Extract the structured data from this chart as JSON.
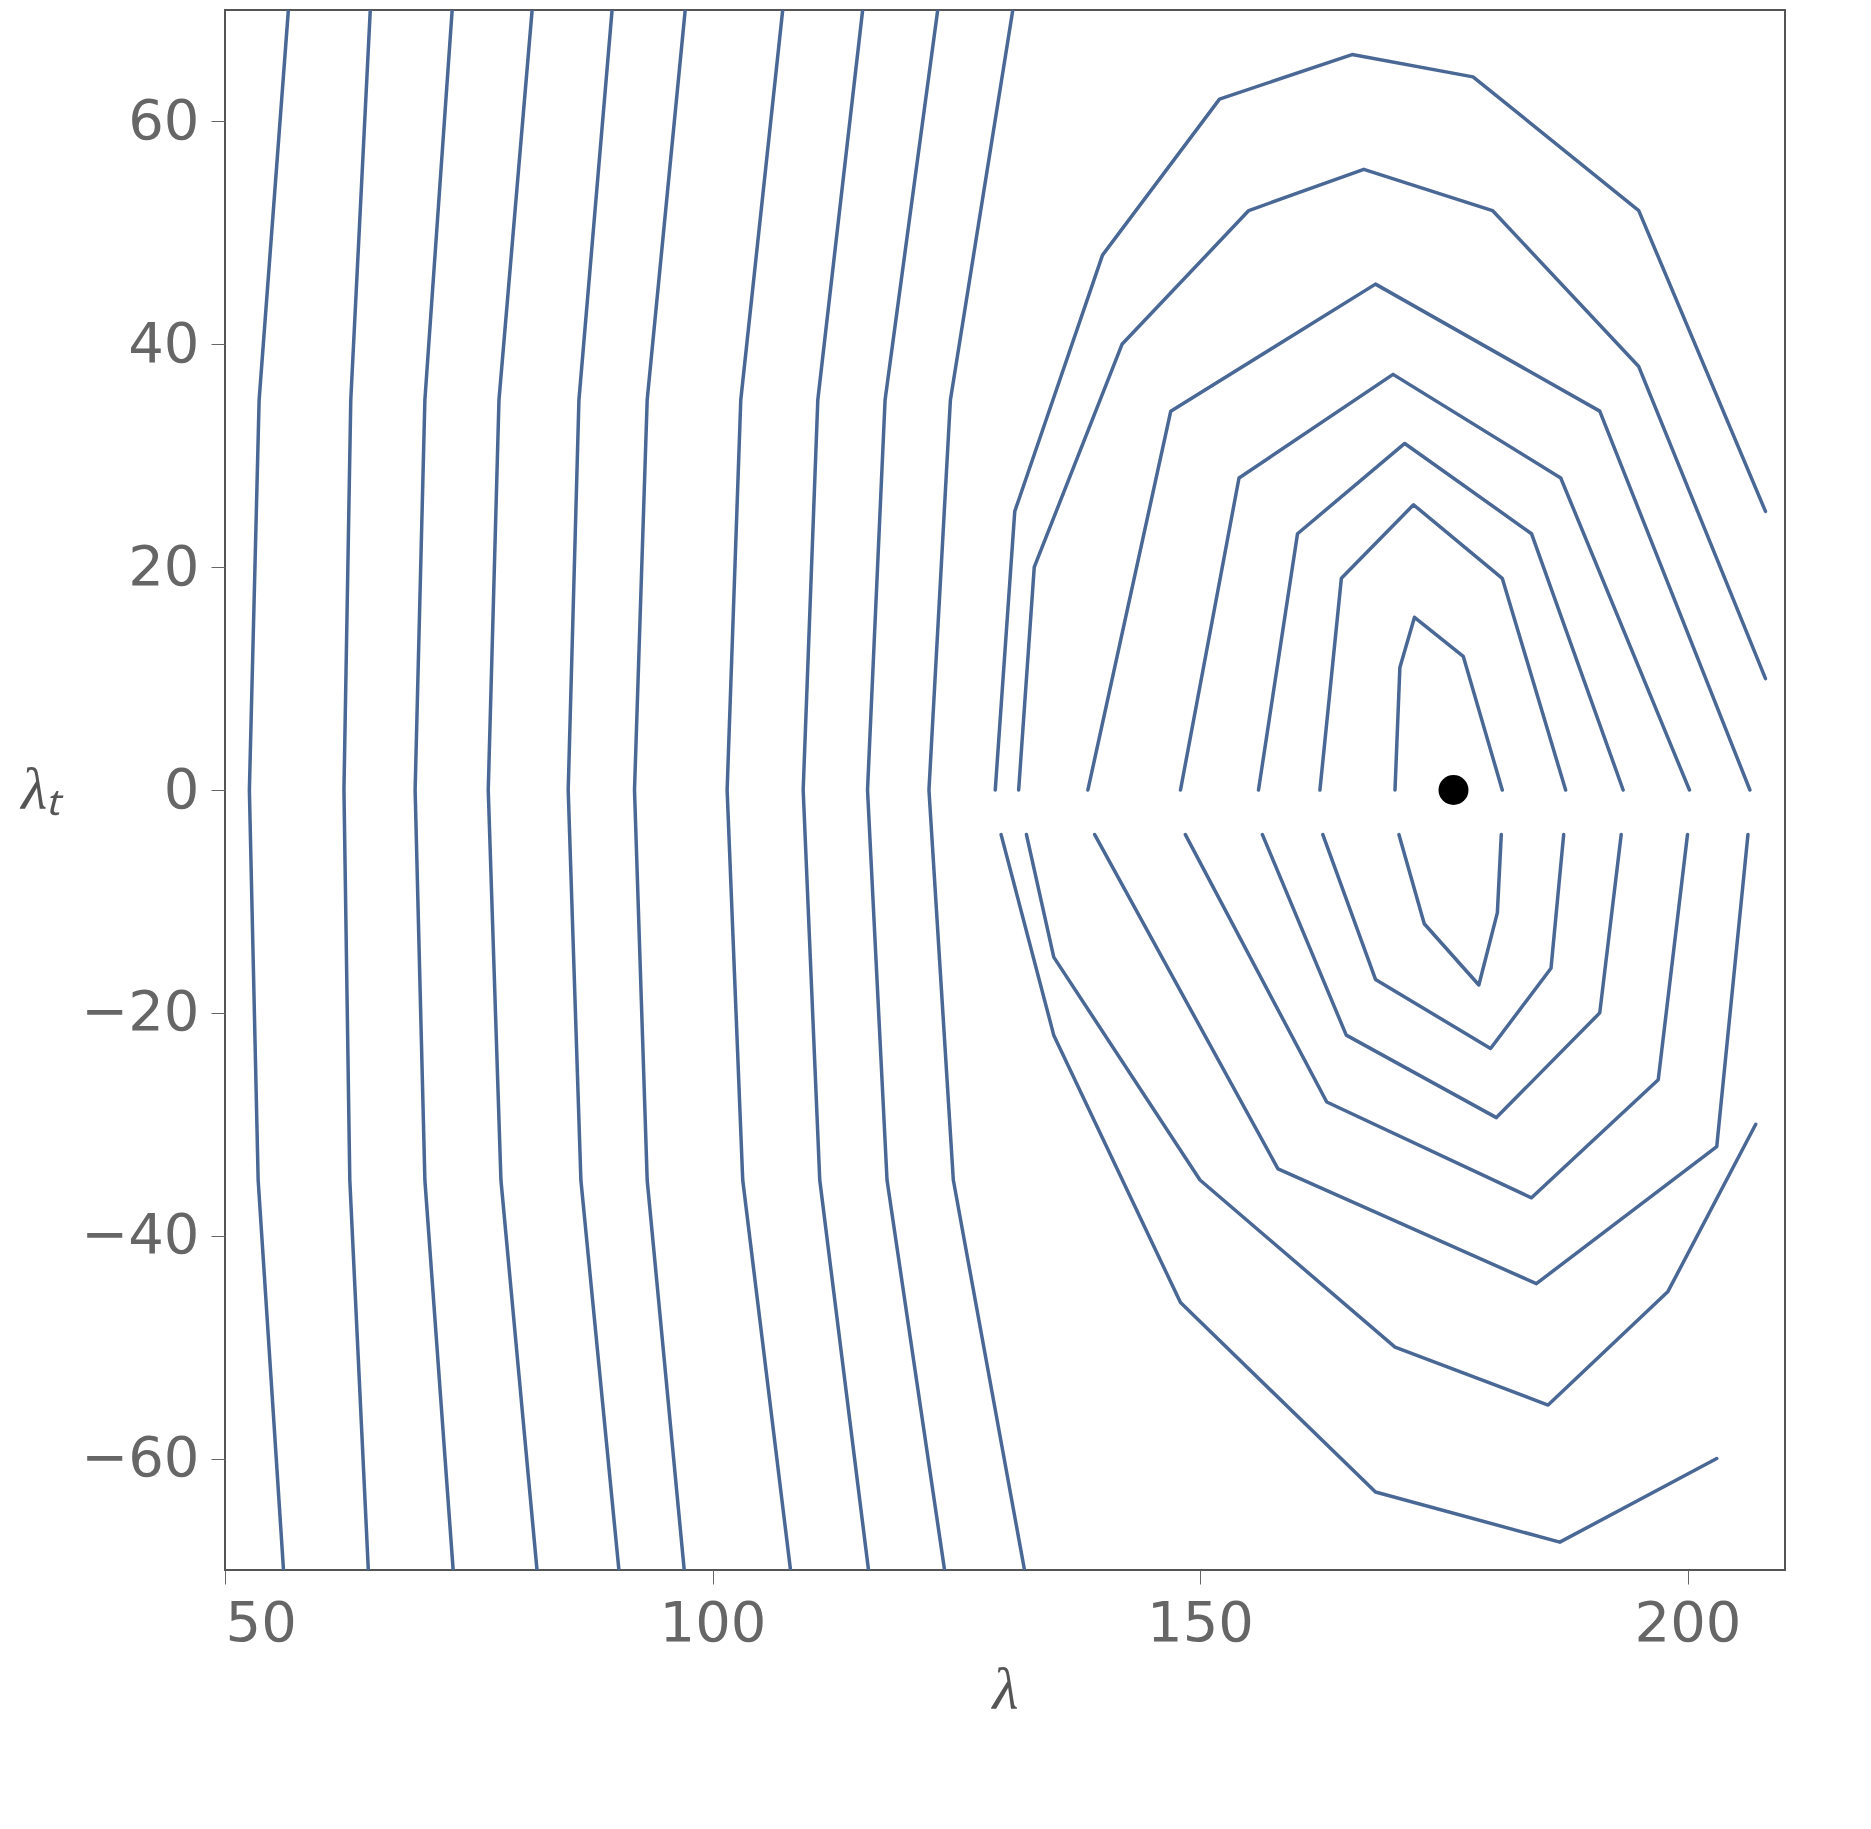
{
  "chart_data": {
    "type": "line",
    "xlabel": "λ",
    "ylabel": "λₜ",
    "xlim": [
      50,
      210
    ],
    "ylim": [
      -70,
      70
    ],
    "xticks": [
      50,
      100,
      150,
      200
    ],
    "yticks": [
      -60,
      -40,
      -20,
      0,
      20,
      40,
      60
    ],
    "grid": false,
    "legend": false,
    "series": [
      {
        "color": "#4a6896",
        "x": [
          56,
          53.4,
          52.5,
          53.5,
          56.5
        ],
        "values": [
          -70,
          -35,
          0,
          35,
          70
        ]
      },
      {
        "color": "#4a6896",
        "x": [
          64.7,
          62.8,
          62.2,
          62.9,
          64.9
        ],
        "values": [
          -70,
          -35,
          0,
          35,
          70
        ]
      },
      {
        "color": "#4a6896",
        "x": [
          73.4,
          70.5,
          69.5,
          70.5,
          73.3
        ],
        "values": [
          -70,
          -35,
          0,
          35,
          70
        ]
      },
      {
        "color": "#4a6896",
        "x": [
          82,
          78.3,
          77,
          78.1,
          81.5
        ],
        "values": [
          -70,
          -35,
          0,
          35,
          70
        ]
      },
      {
        "color": "#4a6896",
        "x": [
          90.4,
          86.5,
          85.2,
          86.3,
          89.7
        ],
        "values": [
          -70,
          -35,
          0,
          35,
          70
        ]
      },
      {
        "color": "#4a6896",
        "x": [
          97.1,
          93.3,
          92,
          93.3,
          97.2
        ],
        "values": [
          -70,
          -35,
          0,
          35,
          70
        ]
      },
      {
        "color": "#4a6896",
        "x": [
          108,
          103.1,
          101.5,
          102.9,
          107.2
        ],
        "values": [
          -70,
          -35,
          0,
          35,
          70
        ]
      },
      {
        "color": "#4a6896",
        "x": [
          116,
          111,
          109.3,
          110.8,
          115.4
        ],
        "values": [
          -70,
          -35,
          0,
          35,
          70
        ]
      },
      {
        "color": "#4a6896",
        "x": [
          123.8,
          117.9,
          115.9,
          117.7,
          123.1
        ],
        "values": [
          -70,
          -35,
          0,
          35,
          70
        ]
      },
      {
        "color": "#4a6896",
        "x": [
          132,
          124.7,
          122.2,
          124.4,
          130.8
        ],
        "values": [
          -70,
          -35,
          0,
          35,
          70
        ]
      },
      {
        "color": "#4a6896",
        "x": [
          170,
          170.5,
          172,
          177,
          181
        ],
        "values": [
          0,
          11,
          15.5,
          12,
          0
        ]
      },
      {
        "color": "#4a6896",
        "x": [
          170.4,
          173,
          178.6,
          180.5,
          180.9
        ],
        "values": [
          -4,
          -12,
          -17.5,
          -11,
          -4
        ]
      },
      {
        "color": "#4a6896",
        "x": [
          162.3,
          164.5,
          171.9,
          181,
          187.5
        ],
        "values": [
          0,
          19,
          25.6,
          19,
          0
        ]
      },
      {
        "color": "#4a6896",
        "x": [
          162.6,
          168,
          179.8,
          186,
          187.3
        ],
        "values": [
          -4,
          -17,
          -23.2,
          -16,
          -4
        ]
      },
      {
        "color": "#4a6896",
        "x": [
          156,
          160,
          171,
          184,
          193.4
        ],
        "values": [
          0,
          23,
          31.1,
          23,
          0
        ]
      },
      {
        "color": "#4a6896",
        "x": [
          156.4,
          165,
          180.4,
          191,
          193.2
        ],
        "values": [
          -4,
          -22,
          -29.4,
          -20,
          -4
        ]
      },
      {
        "color": "#4a6896",
        "x": [
          148,
          154,
          169.8,
          187,
          200.2
        ],
        "values": [
          0,
          28,
          37.3,
          28,
          0
        ]
      },
      {
        "color": "#4a6896",
        "x": [
          148.5,
          163,
          184,
          197,
          200
        ],
        "values": [
          -4,
          -28,
          -36.6,
          -26,
          -4
        ]
      },
      {
        "color": "#4a6896",
        "x": [
          138.5,
          147,
          168,
          191,
          206.4
        ],
        "values": [
          0,
          34,
          45.4,
          34,
          0
        ]
      },
      {
        "color": "#4a6896",
        "x": [
          139.2,
          158,
          184.5,
          203,
          206.2
        ],
        "values": [
          -4,
          -34,
          -44.3,
          -32,
          -4
        ]
      },
      {
        "color": "#4a6896",
        "x": [
          131.4,
          133,
          142,
          155,
          166.8,
          180,
          195,
          208
        ],
        "values": [
          0,
          20,
          40,
          52,
          55.7,
          52,
          38,
          10
        ]
      },
      {
        "color": "#4a6896",
        "x": [
          132.2,
          135,
          150,
          170,
          185.7,
          198,
          207
        ],
        "values": [
          -4,
          -15,
          -35,
          -50,
          -55.2,
          -45,
          -30
        ]
      },
      {
        "color": "#4a6896",
        "x": [
          129,
          131,
          140,
          152,
          165.6,
          178,
          195,
          208
        ],
        "values": [
          0,
          25,
          48,
          62,
          66,
          64,
          52,
          25
        ]
      },
      {
        "color": "#4a6896",
        "x": [
          129.6,
          135,
          148,
          168,
          186.9,
          203
        ],
        "values": [
          -4,
          -22,
          -46,
          -63,
          -67.5,
          -60
        ]
      },
      {
        "type": "scatter",
        "color": "#000000",
        "x": [
          176
        ],
        "values": [
          0
        ]
      }
    ]
  }
}
